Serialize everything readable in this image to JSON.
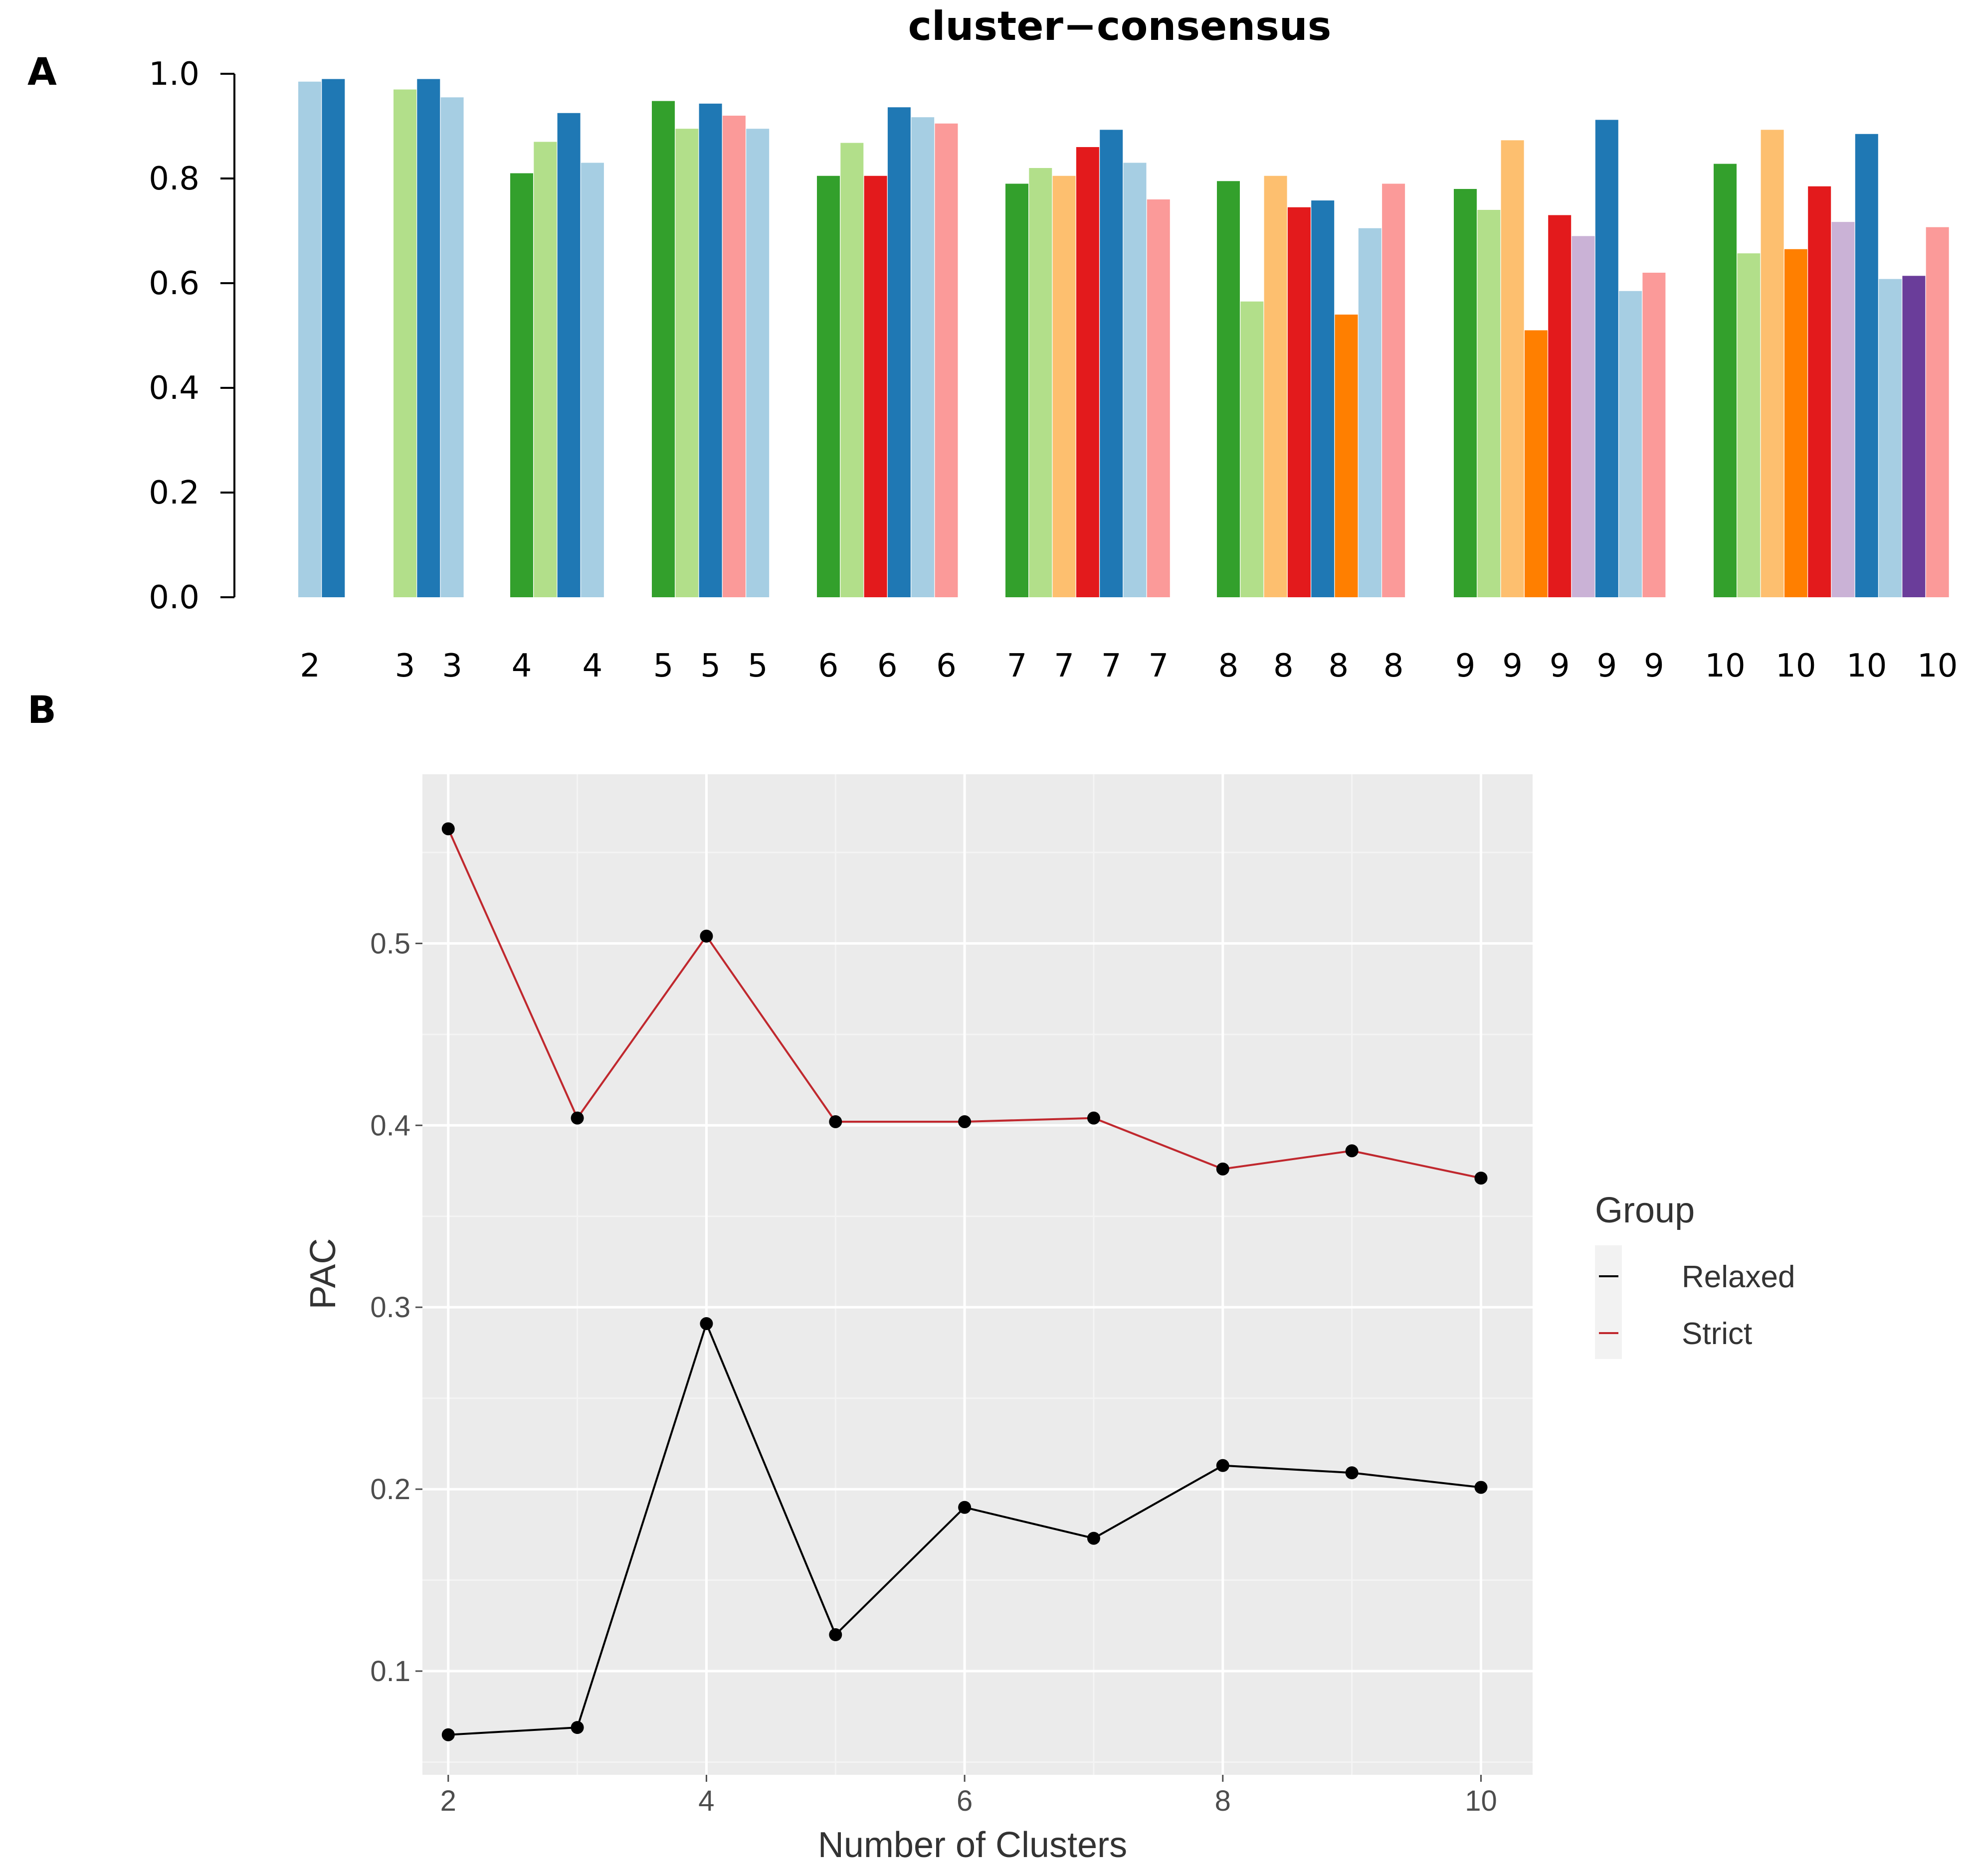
{
  "panels": {
    "a_label": "A",
    "b_label": "B"
  },
  "chart_data": [
    {
      "type": "bar",
      "title": "cluster−consensus",
      "xlabel": "",
      "ylabel": "",
      "ylim": [
        0,
        1.0
      ],
      "yticks": [
        "0.0",
        "0.2",
        "0.4",
        "0.6",
        "0.8",
        "1.0"
      ],
      "palette": {
        "green": "#33a02c",
        "light_green": "#b2df8a",
        "light_orange": "#fdbf6f",
        "red": "#e31a1c",
        "dark_blue": "#1f78b4",
        "light_blue": "#a6cee3",
        "pink": "#fb9a99",
        "orange": "#ff7f00",
        "lavender": "#cab2d6",
        "purple": "#6a3d9a"
      },
      "groups": [
        {
          "k": 2,
          "bars": [
            {
              "value": 0.985,
              "color": "light_blue"
            },
            {
              "value": 0.99,
              "color": "dark_blue"
            }
          ],
          "labels": [
            "2"
          ]
        },
        {
          "k": 3,
          "bars": [
            {
              "value": 0.97,
              "color": "light_green"
            },
            {
              "value": 0.99,
              "color": "dark_blue"
            },
            {
              "value": 0.955,
              "color": "light_blue"
            }
          ],
          "labels": [
            "3",
            "3"
          ]
        },
        {
          "k": 4,
          "bars": [
            {
              "value": 0.81,
              "color": "green"
            },
            {
              "value": 0.87,
              "color": "light_green"
            },
            {
              "value": 0.925,
              "color": "dark_blue"
            },
            {
              "value": 0.83,
              "color": "light_blue"
            }
          ],
          "labels": [
            "4",
            "4"
          ]
        },
        {
          "k": 5,
          "bars": [
            {
              "value": 0.948,
              "color": "green"
            },
            {
              "value": 0.895,
              "color": "light_green"
            },
            {
              "value": 0.943,
              "color": "dark_blue"
            },
            {
              "value": 0.92,
              "color": "pink"
            },
            {
              "value": 0.895,
              "color": "light_blue"
            }
          ],
          "labels": [
            "5",
            "5",
            "5"
          ]
        },
        {
          "k": 6,
          "bars": [
            {
              "value": 0.805,
              "color": "green"
            },
            {
              "value": 0.868,
              "color": "light_green"
            },
            {
              "value": 0.805,
              "color": "red"
            },
            {
              "value": 0.936,
              "color": "dark_blue"
            },
            {
              "value": 0.917,
              "color": "light_blue"
            },
            {
              "value": 0.905,
              "color": "pink"
            }
          ],
          "labels": [
            "6",
            "6",
            "6"
          ]
        },
        {
          "k": 7,
          "bars": [
            {
              "value": 0.79,
              "color": "green"
            },
            {
              "value": 0.82,
              "color": "light_green"
            },
            {
              "value": 0.805,
              "color": "light_orange"
            },
            {
              "value": 0.86,
              "color": "red"
            },
            {
              "value": 0.893,
              "color": "dark_blue"
            },
            {
              "value": 0.83,
              "color": "light_blue"
            },
            {
              "value": 0.76,
              "color": "pink"
            }
          ],
          "labels": [
            "7",
            "7",
            "7",
            "7"
          ]
        },
        {
          "k": 8,
          "bars": [
            {
              "value": 0.795,
              "color": "green"
            },
            {
              "value": 0.565,
              "color": "light_green"
            },
            {
              "value": 0.805,
              "color": "light_orange"
            },
            {
              "value": 0.745,
              "color": "red"
            },
            {
              "value": 0.758,
              "color": "dark_blue"
            },
            {
              "value": 0.54,
              "color": "orange"
            },
            {
              "value": 0.705,
              "color": "light_blue"
            },
            {
              "value": 0.79,
              "color": "pink"
            }
          ],
          "labels": [
            "8",
            "8",
            "8",
            "8"
          ]
        },
        {
          "k": 9,
          "bars": [
            {
              "value": 0.78,
              "color": "green"
            },
            {
              "value": 0.74,
              "color": "light_green"
            },
            {
              "value": 0.873,
              "color": "light_orange"
            },
            {
              "value": 0.51,
              "color": "orange"
            },
            {
              "value": 0.73,
              "color": "red"
            },
            {
              "value": 0.69,
              "color": "lavender"
            },
            {
              "value": 0.912,
              "color": "dark_blue"
            },
            {
              "value": 0.585,
              "color": "light_blue"
            },
            {
              "value": 0.62,
              "color": "pink"
            }
          ],
          "labels": [
            "9",
            "9",
            "9",
            "9",
            "9"
          ]
        },
        {
          "k": 10,
          "bars": [
            {
              "value": 0.828,
              "color": "green"
            },
            {
              "value": 0.657,
              "color": "light_green"
            },
            {
              "value": 0.893,
              "color": "light_orange"
            },
            {
              "value": 0.665,
              "color": "orange"
            },
            {
              "value": 0.785,
              "color": "red"
            },
            {
              "value": 0.717,
              "color": "lavender"
            },
            {
              "value": 0.885,
              "color": "dark_blue"
            },
            {
              "value": 0.608,
              "color": "light_blue"
            },
            {
              "value": 0.614,
              "color": "purple"
            },
            {
              "value": 0.707,
              "color": "pink"
            }
          ],
          "labels": [
            "10",
            "10",
            "10",
            "10"
          ]
        }
      ]
    },
    {
      "type": "line",
      "title": "",
      "xlabel": "Number of Clusters",
      "ylabel": "PAC",
      "x": [
        2,
        3,
        4,
        5,
        6,
        7,
        8,
        9,
        10
      ],
      "xlim": [
        1.8,
        10.4
      ],
      "ylim": [
        0.043,
        0.593
      ],
      "xticks": [
        2,
        4,
        6,
        8,
        10
      ],
      "yticks": [
        0.1,
        0.2,
        0.3,
        0.4,
        0.5
      ],
      "ytick_labels": [
        "0.1",
        "0.2",
        "0.3",
        "0.4",
        "0.5"
      ],
      "series": [
        {
          "name": "Relaxed",
          "color": "#000000",
          "values": [
            0.065,
            0.069,
            0.291,
            0.12,
            0.19,
            0.173,
            0.213,
            0.209,
            0.201
          ]
        },
        {
          "name": "Strict",
          "color": "#c0282e",
          "values": [
            0.563,
            0.404,
            0.504,
            0.402,
            0.402,
            0.404,
            0.376,
            0.386,
            0.371
          ]
        }
      ],
      "legend": {
        "title": "Group",
        "position": "right"
      },
      "panel_bg": "#ebebeb",
      "grid": true
    }
  ]
}
